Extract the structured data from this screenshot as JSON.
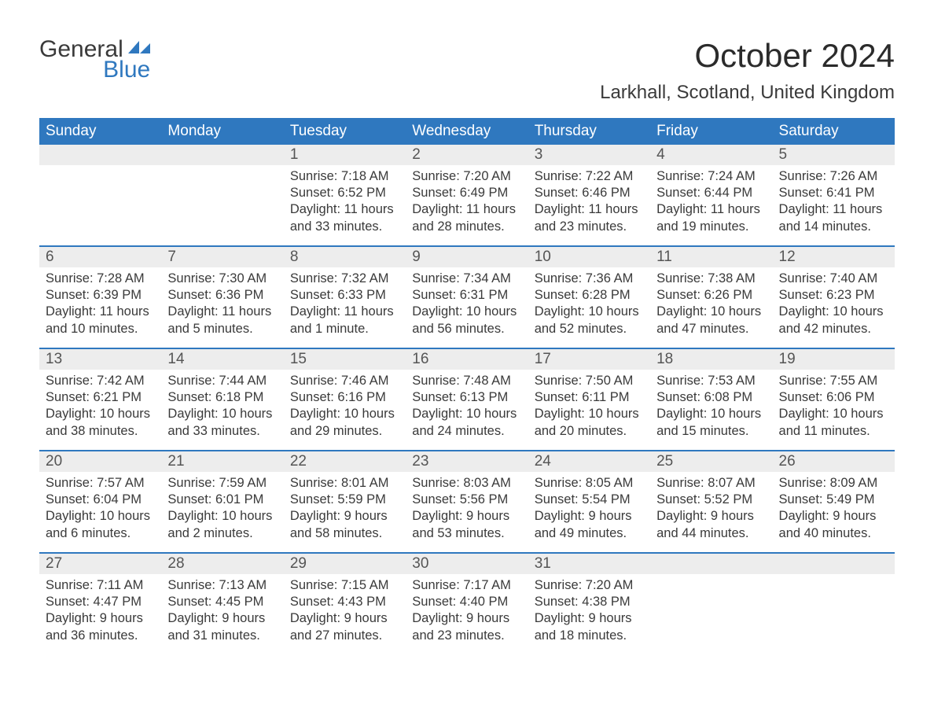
{
  "logo": {
    "word1": "General",
    "word2": "Blue",
    "flag_color": "#2f78bf",
    "text_color": "#3a3a3a"
  },
  "title": "October 2024",
  "location": "Larkhall, Scotland, United Kingdom",
  "colors": {
    "header_bg": "#2f78bf",
    "header_text": "#ffffff",
    "daynum_bg": "#ededed",
    "week_border": "#2f78bf",
    "body_text": "#3a3a3a"
  },
  "fonts": {
    "title_size_pt": 32,
    "location_size_pt": 18,
    "weekday_size_pt": 14,
    "body_size_pt": 12
  },
  "weekdays": [
    "Sunday",
    "Monday",
    "Tuesday",
    "Wednesday",
    "Thursday",
    "Friday",
    "Saturday"
  ],
  "weeks": [
    [
      null,
      null,
      {
        "n": "1",
        "sunrise": "Sunrise: 7:18 AM",
        "sunset": "Sunset: 6:52 PM",
        "day1": "Daylight: 11 hours",
        "day2": "and 33 minutes."
      },
      {
        "n": "2",
        "sunrise": "Sunrise: 7:20 AM",
        "sunset": "Sunset: 6:49 PM",
        "day1": "Daylight: 11 hours",
        "day2": "and 28 minutes."
      },
      {
        "n": "3",
        "sunrise": "Sunrise: 7:22 AM",
        "sunset": "Sunset: 6:46 PM",
        "day1": "Daylight: 11 hours",
        "day2": "and 23 minutes."
      },
      {
        "n": "4",
        "sunrise": "Sunrise: 7:24 AM",
        "sunset": "Sunset: 6:44 PM",
        "day1": "Daylight: 11 hours",
        "day2": "and 19 minutes."
      },
      {
        "n": "5",
        "sunrise": "Sunrise: 7:26 AM",
        "sunset": "Sunset: 6:41 PM",
        "day1": "Daylight: 11 hours",
        "day2": "and 14 minutes."
      }
    ],
    [
      {
        "n": "6",
        "sunrise": "Sunrise: 7:28 AM",
        "sunset": "Sunset: 6:39 PM",
        "day1": "Daylight: 11 hours",
        "day2": "and 10 minutes."
      },
      {
        "n": "7",
        "sunrise": "Sunrise: 7:30 AM",
        "sunset": "Sunset: 6:36 PM",
        "day1": "Daylight: 11 hours",
        "day2": "and 5 minutes."
      },
      {
        "n": "8",
        "sunrise": "Sunrise: 7:32 AM",
        "sunset": "Sunset: 6:33 PM",
        "day1": "Daylight: 11 hours",
        "day2": "and 1 minute."
      },
      {
        "n": "9",
        "sunrise": "Sunrise: 7:34 AM",
        "sunset": "Sunset: 6:31 PM",
        "day1": "Daylight: 10 hours",
        "day2": "and 56 minutes."
      },
      {
        "n": "10",
        "sunrise": "Sunrise: 7:36 AM",
        "sunset": "Sunset: 6:28 PM",
        "day1": "Daylight: 10 hours",
        "day2": "and 52 minutes."
      },
      {
        "n": "11",
        "sunrise": "Sunrise: 7:38 AM",
        "sunset": "Sunset: 6:26 PM",
        "day1": "Daylight: 10 hours",
        "day2": "and 47 minutes."
      },
      {
        "n": "12",
        "sunrise": "Sunrise: 7:40 AM",
        "sunset": "Sunset: 6:23 PM",
        "day1": "Daylight: 10 hours",
        "day2": "and 42 minutes."
      }
    ],
    [
      {
        "n": "13",
        "sunrise": "Sunrise: 7:42 AM",
        "sunset": "Sunset: 6:21 PM",
        "day1": "Daylight: 10 hours",
        "day2": "and 38 minutes."
      },
      {
        "n": "14",
        "sunrise": "Sunrise: 7:44 AM",
        "sunset": "Sunset: 6:18 PM",
        "day1": "Daylight: 10 hours",
        "day2": "and 33 minutes."
      },
      {
        "n": "15",
        "sunrise": "Sunrise: 7:46 AM",
        "sunset": "Sunset: 6:16 PM",
        "day1": "Daylight: 10 hours",
        "day2": "and 29 minutes."
      },
      {
        "n": "16",
        "sunrise": "Sunrise: 7:48 AM",
        "sunset": "Sunset: 6:13 PM",
        "day1": "Daylight: 10 hours",
        "day2": "and 24 minutes."
      },
      {
        "n": "17",
        "sunrise": "Sunrise: 7:50 AM",
        "sunset": "Sunset: 6:11 PM",
        "day1": "Daylight: 10 hours",
        "day2": "and 20 minutes."
      },
      {
        "n": "18",
        "sunrise": "Sunrise: 7:53 AM",
        "sunset": "Sunset: 6:08 PM",
        "day1": "Daylight: 10 hours",
        "day2": "and 15 minutes."
      },
      {
        "n": "19",
        "sunrise": "Sunrise: 7:55 AM",
        "sunset": "Sunset: 6:06 PM",
        "day1": "Daylight: 10 hours",
        "day2": "and 11 minutes."
      }
    ],
    [
      {
        "n": "20",
        "sunrise": "Sunrise: 7:57 AM",
        "sunset": "Sunset: 6:04 PM",
        "day1": "Daylight: 10 hours",
        "day2": "and 6 minutes."
      },
      {
        "n": "21",
        "sunrise": "Sunrise: 7:59 AM",
        "sunset": "Sunset: 6:01 PM",
        "day1": "Daylight: 10 hours",
        "day2": "and 2 minutes."
      },
      {
        "n": "22",
        "sunrise": "Sunrise: 8:01 AM",
        "sunset": "Sunset: 5:59 PM",
        "day1": "Daylight: 9 hours",
        "day2": "and 58 minutes."
      },
      {
        "n": "23",
        "sunrise": "Sunrise: 8:03 AM",
        "sunset": "Sunset: 5:56 PM",
        "day1": "Daylight: 9 hours",
        "day2": "and 53 minutes."
      },
      {
        "n": "24",
        "sunrise": "Sunrise: 8:05 AM",
        "sunset": "Sunset: 5:54 PM",
        "day1": "Daylight: 9 hours",
        "day2": "and 49 minutes."
      },
      {
        "n": "25",
        "sunrise": "Sunrise: 8:07 AM",
        "sunset": "Sunset: 5:52 PM",
        "day1": "Daylight: 9 hours",
        "day2": "and 44 minutes."
      },
      {
        "n": "26",
        "sunrise": "Sunrise: 8:09 AM",
        "sunset": "Sunset: 5:49 PM",
        "day1": "Daylight: 9 hours",
        "day2": "and 40 minutes."
      }
    ],
    [
      {
        "n": "27",
        "sunrise": "Sunrise: 7:11 AM",
        "sunset": "Sunset: 4:47 PM",
        "day1": "Daylight: 9 hours",
        "day2": "and 36 minutes."
      },
      {
        "n": "28",
        "sunrise": "Sunrise: 7:13 AM",
        "sunset": "Sunset: 4:45 PM",
        "day1": "Daylight: 9 hours",
        "day2": "and 31 minutes."
      },
      {
        "n": "29",
        "sunrise": "Sunrise: 7:15 AM",
        "sunset": "Sunset: 4:43 PM",
        "day1": "Daylight: 9 hours",
        "day2": "and 27 minutes."
      },
      {
        "n": "30",
        "sunrise": "Sunrise: 7:17 AM",
        "sunset": "Sunset: 4:40 PM",
        "day1": "Daylight: 9 hours",
        "day2": "and 23 minutes."
      },
      {
        "n": "31",
        "sunrise": "Sunrise: 7:20 AM",
        "sunset": "Sunset: 4:38 PM",
        "day1": "Daylight: 9 hours",
        "day2": "and 18 minutes."
      },
      null,
      null
    ]
  ]
}
